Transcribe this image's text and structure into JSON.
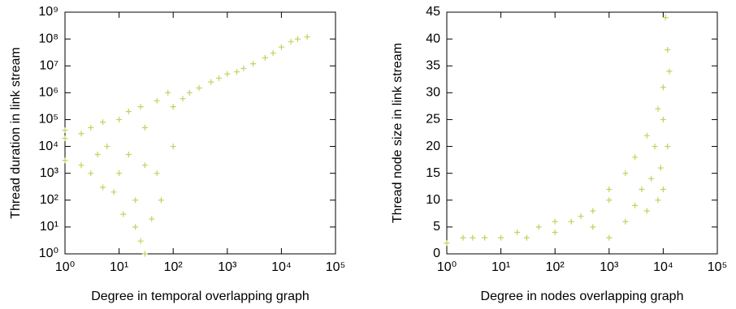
{
  "chart_data": [
    {
      "type": "scatter",
      "xlabel": "Degree in temporal overlapping graph",
      "ylabel": "Thread duration in link stream",
      "xscale": "log",
      "yscale": "log",
      "color": "#b9d65f",
      "marker": "+",
      "xlim": [
        1,
        100000
      ],
      "ylim": [
        1,
        1000000000
      ],
      "xticks": [
        {
          "value": 1,
          "label": "10⁰"
        },
        {
          "value": 10,
          "label": "10¹"
        },
        {
          "value": 100,
          "label": "10²"
        },
        {
          "value": 1000,
          "label": "10³"
        },
        {
          "value": 10000,
          "label": "10⁴"
        },
        {
          "value": 100000,
          "label": "10⁵"
        }
      ],
      "yticks": [
        {
          "value": 1,
          "label": "10⁰"
        },
        {
          "value": 10,
          "label": "10¹"
        },
        {
          "value": 100,
          "label": "10²"
        },
        {
          "value": 1000,
          "label": "10³"
        },
        {
          "value": 10000,
          "label": "10⁴"
        },
        {
          "value": 100000,
          "label": "10⁵"
        },
        {
          "value": 1000000,
          "label": "10⁶"
        },
        {
          "value": 10000000,
          "label": "10⁷"
        },
        {
          "value": 100000000,
          "label": "10⁸"
        },
        {
          "value": 1000000000,
          "label": "10⁹"
        }
      ],
      "x": [
        1,
        1,
        1,
        2,
        2,
        3,
        3,
        4,
        5,
        5,
        6,
        8,
        10,
        10,
        12,
        15,
        15,
        20,
        20,
        25,
        25,
        30,
        30,
        30,
        40,
        50,
        50,
        60,
        80,
        100,
        100,
        150,
        200,
        300,
        500,
        700,
        1000,
        1500,
        2000,
        3000,
        5000,
        7000,
        10000,
        15000,
        20000,
        30000
      ],
      "y": [
        3000,
        20000,
        40000,
        2000,
        30000,
        1000,
        50000,
        5000,
        300,
        80000,
        10000,
        200,
        100000,
        1000,
        30,
        200000,
        5000,
        10,
        100,
        300000,
        3,
        1,
        2000,
        50000,
        20,
        500000,
        1000,
        100,
        1000000,
        10000,
        300000,
        600000,
        1000000,
        1500000,
        2500000,
        3500000,
        5000000,
        6000000,
        8000000,
        12000000,
        20000000,
        30000000,
        50000000,
        80000000,
        100000000,
        120000000
      ]
    },
    {
      "type": "scatter",
      "xlabel": "Degree in nodes overlapping graph",
      "ylabel": "Thread node size in link stream",
      "xscale": "log",
      "yscale": "linear",
      "color": "#b9d65f",
      "marker": "+",
      "xlim": [
        1,
        100000
      ],
      "ylim": [
        0,
        45
      ],
      "xticks": [
        {
          "value": 1,
          "label": "10⁰"
        },
        {
          "value": 10,
          "label": "10¹"
        },
        {
          "value": 100,
          "label": "10²"
        },
        {
          "value": 1000,
          "label": "10³"
        },
        {
          "value": 10000,
          "label": "10⁴"
        },
        {
          "value": 100000,
          "label": "10⁵"
        }
      ],
      "yticks": [
        0,
        5,
        10,
        15,
        20,
        25,
        30,
        35,
        40,
        45
      ],
      "x": [
        1,
        2,
        3,
        5,
        10,
        20,
        30,
        50,
        100,
        100,
        200,
        300,
        500,
        500,
        1000,
        1000,
        1000,
        2000,
        2000,
        3000,
        3000,
        4000,
        5000,
        5000,
        6000,
        7000,
        8000,
        8000,
        9000,
        10000,
        10000,
        10000,
        11000,
        12000,
        12000,
        13000
      ],
      "y": [
        2,
        3,
        3,
        3,
        3,
        4,
        3,
        5,
        4,
        6,
        6,
        7,
        5,
        8,
        3,
        10,
        12,
        6,
        15,
        9,
        18,
        12,
        8,
        22,
        14,
        20,
        10,
        27,
        16,
        31,
        25,
        12,
        44,
        38,
        20,
        34
      ]
    }
  ]
}
